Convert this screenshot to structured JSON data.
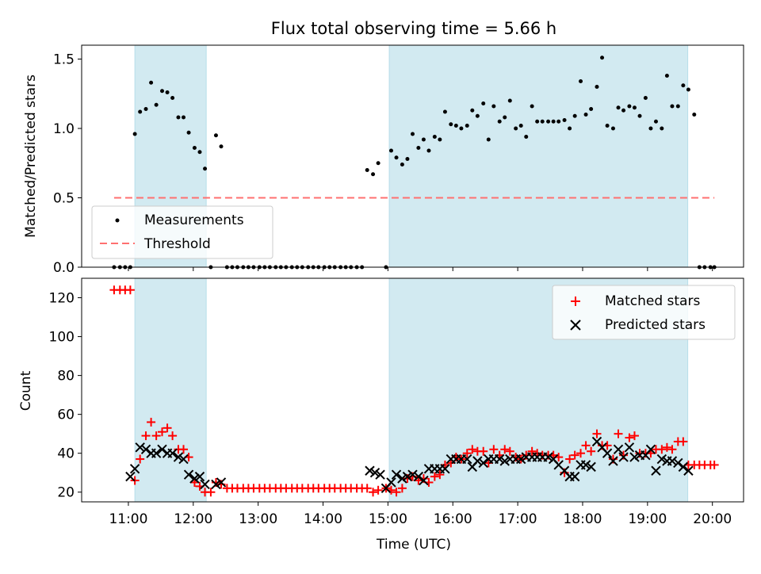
{
  "chart_data": [
    {
      "type": "scatter",
      "title": "Flux total observing time = 5.66 h",
      "xlabel": "",
      "ylabel": "Matched/Predicted stars",
      "xlim": [
        10.28,
        20.48
      ],
      "ylim": [
        0,
        1.6
      ],
      "yticks": [
        0.0,
        0.5,
        1.0,
        1.5
      ],
      "ytick_labels": [
        "0.0",
        "0.5",
        "1.0",
        "1.5"
      ],
      "shaded_intervals": [
        [
          11.1,
          12.2
        ],
        [
          15.02,
          19.62
        ]
      ],
      "shade_color": "#add8e6",
      "legend": {
        "placement": "lower-left",
        "entries": [
          {
            "label": "Measurements",
            "marker": "dot",
            "color": "#000000"
          },
          {
            "label": "Threshold",
            "marker": "dashed-line",
            "color": "#ff7070"
          }
        ]
      },
      "threshold": {
        "name": "Threshold",
        "y": 0.5,
        "x_range": [
          10.78,
          20.03
        ],
        "color": "#ff7070"
      },
      "series": [
        {
          "name": "Measurements",
          "color": "#000000",
          "x": [
            10.78,
            10.87,
            10.95,
            11.03,
            11.1,
            11.18,
            11.27,
            11.35,
            11.43,
            11.52,
            11.6,
            11.68,
            11.77,
            11.85,
            11.93,
            12.02,
            12.1,
            12.18,
            12.27,
            12.35,
            12.43,
            12.52,
            12.6,
            12.68,
            12.77,
            12.85,
            12.93,
            13.02,
            13.1,
            13.18,
            13.27,
            13.35,
            13.43,
            13.52,
            13.6,
            13.68,
            13.77,
            13.85,
            13.93,
            14.02,
            14.1,
            14.18,
            14.27,
            14.35,
            14.43,
            14.52,
            14.6,
            14.68,
            14.77,
            14.85,
            14.97,
            15.05,
            15.13,
            15.22,
            15.3,
            15.38,
            15.47,
            15.55,
            15.63,
            15.72,
            15.8,
            15.88,
            15.97,
            16.05,
            16.13,
            16.22,
            16.3,
            16.38,
            16.47,
            16.55,
            16.63,
            16.72,
            16.8,
            16.88,
            16.97,
            17.05,
            17.13,
            17.22,
            17.3,
            17.38,
            17.47,
            17.55,
            17.63,
            17.72,
            17.8,
            17.88,
            17.97,
            18.05,
            18.13,
            18.22,
            18.3,
            18.38,
            18.47,
            18.55,
            18.63,
            18.72,
            18.8,
            18.88,
            18.97,
            19.05,
            19.13,
            19.22,
            19.3,
            19.38,
            19.47,
            19.55,
            19.63,
            19.72,
            19.8,
            19.88,
            19.97,
            20.03
          ],
          "y": [
            0,
            0,
            0,
            0,
            0.96,
            1.12,
            1.14,
            1.33,
            1.17,
            1.27,
            1.26,
            1.22,
            1.08,
            1.08,
            0.97,
            0.86,
            0.83,
            0.71,
            0,
            0.95,
            0.87,
            0,
            0,
            0,
            0,
            0,
            0,
            0,
            0,
            0,
            0,
            0,
            0,
            0,
            0,
            0,
            0,
            0,
            0,
            0,
            0,
            0,
            0,
            0,
            0,
            0,
            0,
            0.7,
            0.67,
            0.75,
            0,
            0.84,
            0.79,
            0.74,
            0.78,
            0.96,
            0.86,
            0.92,
            0.84,
            0.94,
            0.92,
            1.12,
            1.03,
            1.02,
            1.0,
            1.02,
            1.13,
            1.09,
            1.18,
            0.92,
            1.16,
            1.05,
            1.08,
            1.2,
            1.0,
            1.02,
            0.94,
            1.16,
            1.05,
            1.05,
            1.05,
            1.05,
            1.05,
            1.06,
            1.0,
            1.09,
            1.34,
            1.1,
            1.14,
            1.3,
            1.51,
            1.02,
            1.0,
            1.15,
            1.13,
            1.16,
            1.15,
            1.09,
            1.22,
            1.0,
            1.05,
            1.0,
            1.38,
            1.16,
            1.16,
            1.31,
            1.28,
            1.1,
            0,
            0,
            0,
            0
          ]
        }
      ]
    },
    {
      "type": "scatter",
      "title": "",
      "xlabel": "Time (UTC)",
      "ylabel": "Count",
      "xlim": [
        10.28,
        20.48
      ],
      "ylim": [
        15,
        130
      ],
      "yticks": [
        20,
        40,
        60,
        80,
        100,
        120
      ],
      "ytick_labels": [
        "20",
        "40",
        "60",
        "80",
        "100",
        "120"
      ],
      "xticks": [
        11,
        12,
        13,
        14,
        15,
        16,
        17,
        18,
        19,
        20
      ],
      "xtick_labels": [
        "11:00",
        "12:00",
        "13:00",
        "14:00",
        "15:00",
        "16:00",
        "17:00",
        "18:00",
        "19:00",
        "20:00"
      ],
      "shaded_intervals": [
        [
          11.1,
          12.2
        ],
        [
          15.02,
          19.62
        ]
      ],
      "shade_color": "#add8e6",
      "legend": {
        "placement": "upper-right",
        "entries": [
          {
            "label": "Matched stars",
            "marker": "plus",
            "color": "#ff0000"
          },
          {
            "label": "Predicted stars",
            "marker": "x",
            "color": "#000000"
          }
        ]
      },
      "series": [
        {
          "name": "Matched stars",
          "marker": "plus",
          "color": "#ff0000",
          "x": [
            10.78,
            10.87,
            10.95,
            11.03,
            11.1,
            11.18,
            11.27,
            11.35,
            11.43,
            11.52,
            11.6,
            11.68,
            11.77,
            11.85,
            11.93,
            12.02,
            12.1,
            12.18,
            12.27,
            12.35,
            12.43,
            12.52,
            12.6,
            12.68,
            12.77,
            12.85,
            12.93,
            13.02,
            13.1,
            13.18,
            13.27,
            13.35,
            13.43,
            13.52,
            13.6,
            13.68,
            13.77,
            13.85,
            13.93,
            14.02,
            14.1,
            14.18,
            14.27,
            14.35,
            14.43,
            14.52,
            14.6,
            14.68,
            14.77,
            14.85,
            14.97,
            15.05,
            15.13,
            15.22,
            15.3,
            15.38,
            15.47,
            15.55,
            15.63,
            15.72,
            15.8,
            15.88,
            15.97,
            16.05,
            16.13,
            16.22,
            16.3,
            16.38,
            16.47,
            16.55,
            16.63,
            16.72,
            16.8,
            16.88,
            16.97,
            17.05,
            17.13,
            17.22,
            17.3,
            17.38,
            17.47,
            17.55,
            17.63,
            17.72,
            17.8,
            17.88,
            17.97,
            18.05,
            18.13,
            18.22,
            18.3,
            18.38,
            18.47,
            18.55,
            18.63,
            18.72,
            18.8,
            18.88,
            18.97,
            19.05,
            19.13,
            19.22,
            19.3,
            19.38,
            19.47,
            19.55,
            19.63,
            19.72,
            19.8,
            19.88,
            19.97,
            20.03
          ],
          "y": [
            124,
            124,
            124,
            124,
            26,
            37,
            49,
            56,
            49,
            51,
            53,
            49,
            42,
            42,
            38,
            25,
            23,
            20,
            20,
            25,
            24,
            22,
            22,
            22,
            22,
            22,
            22,
            22,
            22,
            22,
            22,
            22,
            22,
            22,
            22,
            22,
            22,
            22,
            22,
            22,
            22,
            22,
            22,
            22,
            22,
            22,
            22,
            22,
            20,
            21,
            22,
            21,
            20,
            22,
            27,
            28,
            26,
            27,
            25,
            28,
            29,
            34,
            35,
            38,
            37,
            40,
            42,
            41,
            41,
            35,
            42,
            39,
            42,
            41,
            38,
            37,
            39,
            41,
            40,
            39,
            39,
            39,
            38,
            30,
            37,
            39,
            40,
            44,
            41,
            50,
            44,
            44,
            37,
            50,
            39,
            48,
            49,
            40,
            40,
            40,
            42,
            42,
            43,
            42,
            46,
            46,
            34,
            34,
            34,
            34,
            34,
            34
          ]
        },
        {
          "name": "Predicted stars",
          "marker": "x",
          "color": "#000000",
          "x": [
            11.03,
            11.1,
            11.18,
            11.27,
            11.35,
            11.43,
            11.52,
            11.6,
            11.68,
            11.77,
            11.85,
            11.93,
            12.02,
            12.1,
            12.18,
            12.35,
            12.43,
            14.72,
            14.8,
            14.88,
            14.97,
            15.05,
            15.13,
            15.22,
            15.3,
            15.38,
            15.47,
            15.55,
            15.63,
            15.72,
            15.8,
            15.88,
            15.97,
            16.05,
            16.13,
            16.22,
            16.3,
            16.38,
            16.47,
            16.55,
            16.63,
            16.72,
            16.8,
            16.88,
            16.97,
            17.05,
            17.13,
            17.22,
            17.3,
            17.38,
            17.47,
            17.55,
            17.63,
            17.72,
            17.8,
            17.88,
            17.97,
            18.05,
            18.13,
            18.22,
            18.3,
            18.38,
            18.47,
            18.55,
            18.63,
            18.72,
            18.8,
            18.88,
            18.97,
            19.05,
            19.13,
            19.22,
            19.3,
            19.38,
            19.47,
            19.55,
            19.63
          ],
          "y": [
            28,
            32,
            43,
            42,
            40,
            40,
            42,
            40,
            40,
            38,
            37,
            29,
            27,
            28,
            24,
            24,
            25,
            31,
            30,
            29,
            22,
            25,
            29,
            27,
            28,
            29,
            28,
            26,
            32,
            32,
            32,
            32,
            37,
            37,
            37,
            37,
            33,
            36,
            35,
            37,
            37,
            37,
            36,
            37,
            37,
            37,
            38,
            38,
            38,
            38,
            38,
            37,
            34,
            31,
            28,
            28,
            34,
            34,
            33,
            46,
            43,
            40,
            36,
            42,
            38,
            43,
            38,
            39,
            39,
            42,
            31,
            37,
            36,
            36,
            35,
            33,
            31
          ]
        }
      ]
    }
  ]
}
